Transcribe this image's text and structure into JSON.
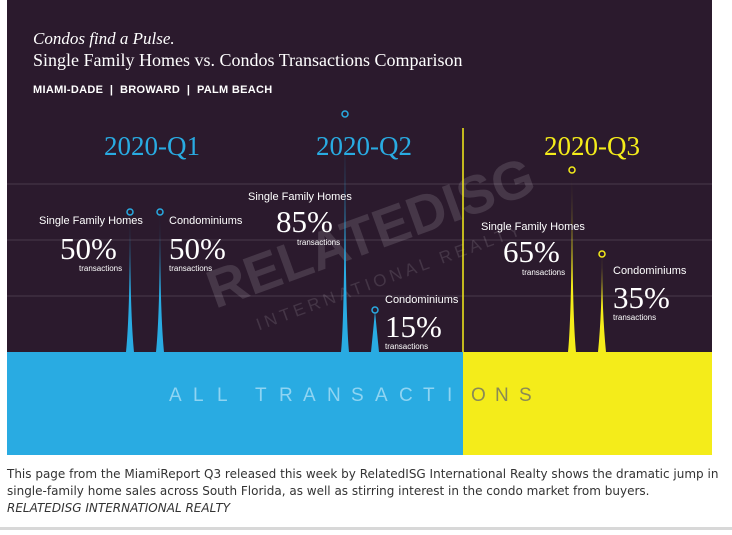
{
  "header": {
    "title": "Condos find a Pulse.",
    "subtitle": "Single Family Homes vs. Condos Transactions Comparison",
    "regions": "MIAMI-DADE  |  BROWARD  |  PALM BEACH"
  },
  "watermark": {
    "brand": "RELATEDISG",
    "sub": "INTERNATIONAL REALTY"
  },
  "band_label": "ALL TRANSACTIONS",
  "transactions_word": "transactions",
  "colors": {
    "background": "#2b1a2d",
    "blue": "#29abe2",
    "yellow": "#f4ec1a",
    "text": "#ffffff"
  },
  "chart_data": {
    "type": "bar",
    "categories": [
      "2020-Q1",
      "2020-Q2",
      "2020-Q3"
    ],
    "series": [
      {
        "name": "Single Family Homes",
        "values": [
          50,
          85,
          65
        ]
      },
      {
        "name": "Condominiums",
        "values": [
          50,
          15,
          35
        ]
      }
    ],
    "unit": "%",
    "ylim": [
      0,
      100
    ],
    "highlight_category": "2020-Q3"
  },
  "caption": {
    "text": "This page from the MiamiReport Q3 released this week by RelatedISG International Realty shows the dramatic jump in single-family home sales across South Florida, as well as stirring interest in the condo market from buyers.",
    "credit": "RELATEDISG INTERNATIONAL REALTY"
  }
}
